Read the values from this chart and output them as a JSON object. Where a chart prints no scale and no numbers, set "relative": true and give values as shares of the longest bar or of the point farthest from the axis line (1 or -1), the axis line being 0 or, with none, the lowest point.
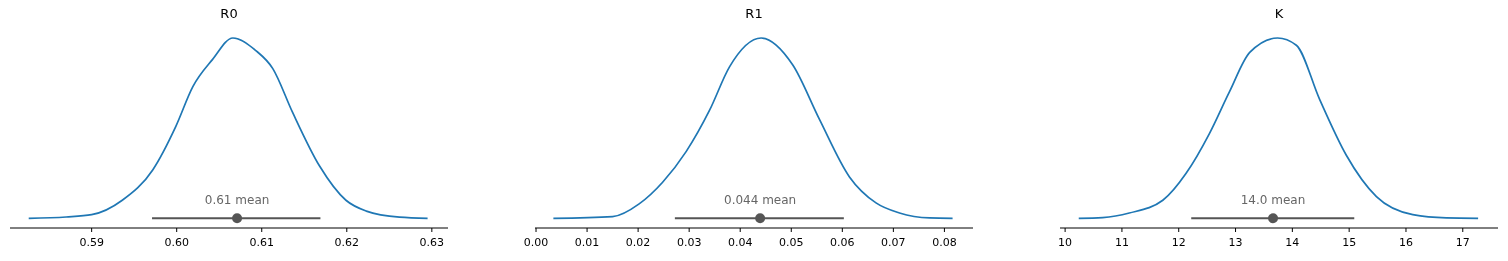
{
  "chart_data": [
    {
      "type": "line",
      "title": "R0",
      "relative": true,
      "xlim": [
        0.5804,
        0.6319
      ],
      "xticks": [
        0.59,
        {
          "value": 0.6,
          "label": "0.60"
        },
        0.61,
        0.62,
        0.63
      ],
      "grid": false,
      "annotations": [
        "0.61 mean"
      ],
      "series": [
        {
          "color": "#1f77b4",
          "x": [
            0.5826,
            0.587,
            0.59,
            0.5936,
            0.5972,
            0.5999,
            0.6019,
            0.6042,
            0.6066,
            0.6093,
            0.6113,
            0.6136,
            0.6168,
            0.6199,
            0.6223,
            0.6262,
            0.6295
          ],
          "values": [
            0.051,
            0.058,
            0.07,
            0.146,
            0.307,
            0.535,
            0.744,
            0.886,
            1,
            0.934,
            0.839,
            0.611,
            0.326,
            0.146,
            0.089,
            0.057,
            0.051
          ]
        },
        {
          "type": "scatter",
          "color": "#555555",
          "marker": "circle",
          "x": [
            0.6071
          ],
          "values": [
            0.051
          ],
          "xerrors": [
            [
              0.5971,
              0.6169
            ]
          ]
        }
      ]
    },
    {
      "type": "line",
      "title": "R1",
      "relative": true,
      "xlim": [
        -0.0002,
        0.0856
      ],
      "xticks": [
        {
          "value": 0,
          "label": "0.00"
        },
        0.01,
        0.02,
        0.03,
        0.04,
        0.05,
        0.06,
        0.07,
        0.08
      ],
      "grid": false,
      "annotations": [
        "0.044 mean"
      ],
      "series": [
        {
          "color": "#1f77b4",
          "x": [
            0.0034,
            0.015,
            0.0202,
            0.0248,
            0.0294,
            0.034,
            0.0379,
            0.0441,
            0.0503,
            0.0555,
            0.0614,
            0.0666,
            0.0712,
            0.0771,
            0.0816
          ],
          "values": [
            0.051,
            0.06,
            0.127,
            0.241,
            0.402,
            0.62,
            0.848,
            1,
            0.858,
            0.573,
            0.269,
            0.132,
            0.079,
            0.053,
            0.051
          ]
        },
        {
          "type": "scatter",
          "color": "#555555",
          "marker": "circle",
          "x": [
            0.0439
          ],
          "values": [
            0.051
          ],
          "xerrors": [
            [
              0.0272,
              0.0603
            ]
          ]
        }
      ]
    },
    {
      "type": "line",
      "title": "K",
      "relative": true,
      "xlim": [
        9.91,
        17.62
      ],
      "xticks": [
        10,
        11,
        12,
        13,
        14,
        15,
        16,
        17
      ],
      "grid": false,
      "annotations": [
        "14.0 mean"
      ],
      "series": [
        {
          "color": "#1f77b4",
          "x": [
            10.24,
            10.66,
            11.13,
            11.72,
            12.13,
            12.54,
            12.89,
            13.25,
            13.74,
            14.07,
            14.48,
            14.95,
            15.48,
            16.12,
            16.71,
            17.27
          ],
          "values": [
            0.051,
            0.055,
            0.079,
            0.146,
            0.288,
            0.497,
            0.715,
            0.924,
            1,
            0.962,
            0.677,
            0.383,
            0.165,
            0.07,
            0.053,
            0.051
          ]
        },
        {
          "type": "scatter",
          "color": "#555555",
          "marker": "circle",
          "x": [
            13.66
          ],
          "values": [
            0.051
          ],
          "xerrors": [
            [
              12.22,
              15.09
            ]
          ]
        }
      ]
    }
  ]
}
